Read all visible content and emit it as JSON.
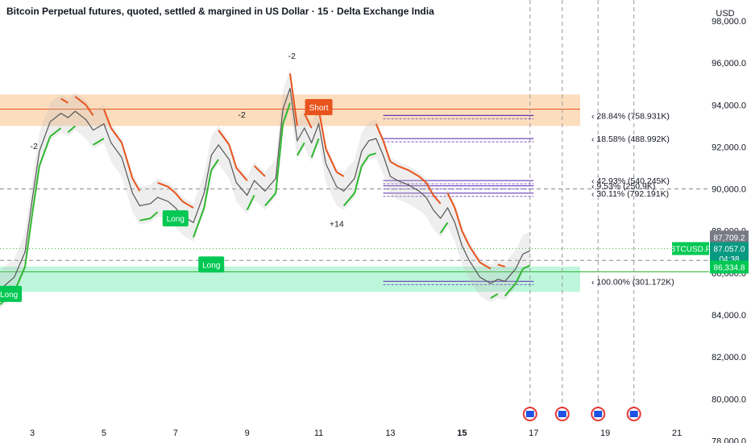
{
  "chart_data": {
    "type": "line",
    "title": "Bitcoin Perpetual futures, quoted, settled & margined in US Dollar · 15 · Delta Exchange India",
    "currency": "USD",
    "y_ticks": [
      "98,000.0",
      "96,000.0",
      "94,000.0",
      "92,000.0",
      "90,000.0",
      "88,000.0",
      "86,000.0",
      "84,000.0",
      "82,000.0",
      "80,000.0",
      "78,000.0"
    ],
    "y_tick_values": [
      98000,
      96000,
      94000,
      92000,
      90000,
      88000,
      86000,
      84000,
      82000,
      80000,
      78000
    ],
    "ylim": [
      77900,
      99000
    ],
    "x_ticks": [
      "3",
      "5",
      "7",
      "9",
      "11",
      "13",
      "15",
      "17",
      "19",
      "21"
    ],
    "x_tick_values": [
      3,
      5,
      7,
      9,
      11,
      13,
      15,
      17,
      19,
      21
    ],
    "x_bold_tick": "15",
    "xlim": [
      2.1,
      21.9
    ],
    "price_series": {
      "name": "",
      "x": [
        2.1,
        2.5,
        2.8,
        3.0,
        3.2,
        3.5,
        3.8,
        4.0,
        4.2,
        4.5,
        4.7,
        5.0,
        5.2,
        5.5,
        5.8,
        6.0,
        6.3,
        6.5,
        6.8,
        7.0,
        7.2,
        7.5,
        7.8,
        8.0,
        8.2,
        8.5,
        8.7,
        9.0,
        9.2,
        9.5,
        9.8,
        10.0,
        10.2,
        10.4,
        10.6,
        10.8,
        11.0,
        11.2,
        11.5,
        11.7,
        12.0,
        12.2,
        12.4,
        12.6,
        12.8,
        13.0,
        13.2,
        13.5,
        13.8,
        14.0,
        14.2,
        14.4,
        14.6,
        14.8,
        15.0,
        15.2,
        15.5,
        15.8,
        16.0,
        16.2,
        16.5,
        16.7,
        16.9
      ],
      "y": [
        85200,
        85800,
        87000,
        89500,
        91800,
        93200,
        93600,
        93400,
        93700,
        93300,
        92800,
        93100,
        92200,
        91500,
        89800,
        89200,
        89300,
        89600,
        89400,
        89100,
        88700,
        88400,
        89800,
        91600,
        92100,
        91400,
        90300,
        89700,
        90400,
        89900,
        90500,
        93800,
        94800,
        92300,
        92900,
        92200,
        93100,
        91200,
        90100,
        89900,
        90500,
        91800,
        92300,
        92400,
        91600,
        90600,
        90400,
        90200,
        89900,
        89600,
        89000,
        88600,
        89100,
        88400,
        87300,
        86600,
        85800,
        85500,
        85700,
        85600,
        86200,
        86900,
        87057
      ]
    },
    "fib_levels": [
      {
        "label": "28.84% (758.931K)",
        "price": 93500
      },
      {
        "label": "18.58% (488.992K)",
        "price": 92400
      },
      {
        "label": "42.93% (540.245K)",
        "price": 90400
      },
      {
        "label": "9.53% (250.9K)",
        "price": 90150
      },
      {
        "label": "30.11% (792.191K)",
        "price": 89800
      },
      {
        "label": "100.00% (301.172K)",
        "price": 85600
      }
    ],
    "price_tags": [
      {
        "text": "87,709.2",
        "price": 87710,
        "color": "#787b86"
      },
      {
        "text": "87,057.0",
        "price": 87160,
        "color": "#089981"
      },
      {
        "text": "04:38",
        "price": 86690,
        "color": "#089981"
      },
      {
        "text": "86,334.8",
        "price": 86280,
        "color": "#00c853"
      }
    ],
    "symbol_tag": "BTCUSD.P",
    "signals": [
      {
        "type": "Long",
        "x": 2.35,
        "y": 85000
      },
      {
        "type": "Long",
        "x": 7.0,
        "y": 88600
      },
      {
        "type": "Long",
        "x": 8.0,
        "y": 86400
      },
      {
        "type": "Short",
        "x": 11.0,
        "y": 93900
      }
    ],
    "annotations": [
      {
        "text": "-2",
        "x": 3.05,
        "y": 91900
      },
      {
        "text": "-2",
        "x": 8.85,
        "y": 93400
      },
      {
        "text": "-2",
        "x": 10.25,
        "y": 96200
      },
      {
        "text": "+14",
        "x": 11.5,
        "y": 88200
      }
    ],
    "event_markers_x": [
      16.9,
      17.8,
      18.8,
      19.8
    ],
    "grid": false
  },
  "colors": {
    "bull": "#2eb82e",
    "bear": "#e8541d",
    "price": "#555555",
    "fib": "#673ab7",
    "resistance_zone": "#fbd7b3",
    "support_zone": "#b7f5d7"
  }
}
